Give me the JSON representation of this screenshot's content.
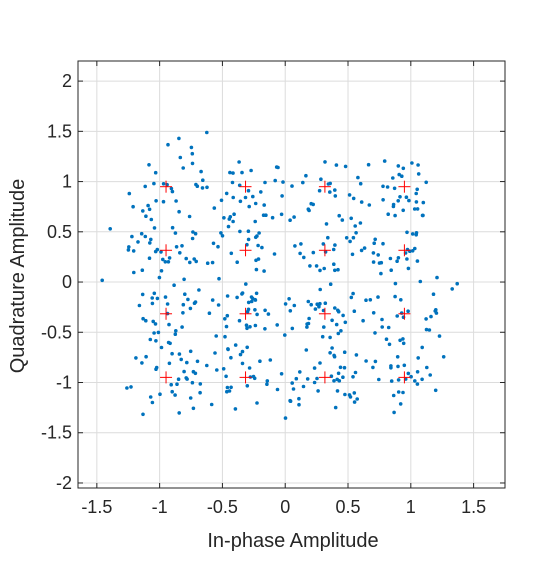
{
  "chart_data": {
    "type": "scatter",
    "title": "",
    "xlabel": "In-phase Amplitude",
    "ylabel": "Quadrature Amplitude",
    "xlim": [
      -1.65,
      1.75
    ],
    "ylim": [
      -2.05,
      2.2
    ],
    "xticks": [
      -1.5,
      -1,
      -0.5,
      0,
      0.5,
      1,
      1.5
    ],
    "xtick_labels": [
      "-1.5",
      "-1",
      "-0.5",
      "0",
      "0.5",
      "1",
      "1.5"
    ],
    "yticks": [
      -2,
      -1.5,
      -1,
      -0.5,
      0,
      0.5,
      1,
      1.5,
      2
    ],
    "ytick_labels": [
      "-2",
      "-1.5",
      "-1",
      "-0.5",
      "0",
      "0.5",
      "1",
      "1.5",
      "2"
    ],
    "grid": true,
    "series": [
      {
        "marker": "dot",
        "color": "#0072BD",
        "count": 512,
        "spread": 0.19,
        "clusters": [
          -0.949,
          -0.316,
          0.316,
          0.949
        ]
      },
      {
        "marker": "plus",
        "color": "#FF0000",
        "points": [
          [
            -0.949,
            0.949
          ],
          [
            -0.316,
            0.949
          ],
          [
            0.316,
            0.949
          ],
          [
            0.949,
            0.949
          ],
          [
            -0.949,
            0.316
          ],
          [
            -0.316,
            0.316
          ],
          [
            0.316,
            0.316
          ],
          [
            0.949,
            0.316
          ],
          [
            -0.949,
            -0.316
          ],
          [
            -0.316,
            -0.316
          ],
          [
            0.316,
            -0.316
          ],
          [
            0.949,
            -0.316
          ],
          [
            -0.949,
            -0.949
          ],
          [
            -0.316,
            -0.949
          ],
          [
            0.316,
            -0.949
          ],
          [
            0.949,
            -0.949
          ]
        ]
      }
    ]
  }
}
